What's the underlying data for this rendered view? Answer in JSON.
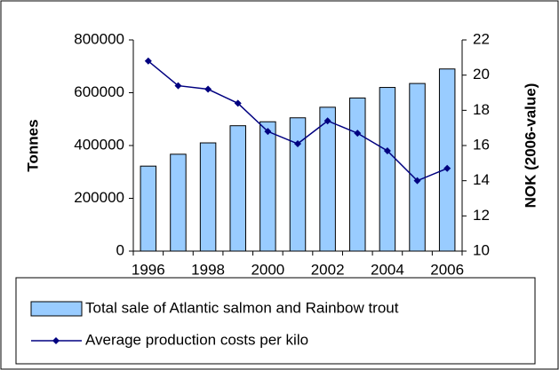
{
  "chart_data": {
    "type": "bar_line",
    "categories": [
      "1996",
      null,
      "1998",
      null,
      "2000",
      null,
      "2002",
      null,
      "2004",
      null,
      "2006"
    ],
    "series": [
      {
        "name": "Total sale of Atlantic salmon and Rainbow trout",
        "color": "#99ccff",
        "type": "bar",
        "values": [
          322000,
          367000,
          410000,
          475000,
          490000,
          505000,
          545000,
          580000,
          620000,
          635000,
          690000
        ]
      },
      {
        "name": "Average production costs per kilo",
        "color": "#000080",
        "type": "line",
        "axis": "y2",
        "values": [
          20.8,
          19.4,
          19.2,
          18.4,
          16.8,
          16.1,
          17.4,
          16.7,
          15.7,
          14.0,
          14.7
        ]
      }
    ],
    "ylabel": "Tonnes",
    "y2label": "NOK (2006-value)",
    "ylim": [
      0,
      800000
    ],
    "yticks": [
      0,
      200000,
      400000,
      600000,
      800000
    ],
    "y2lim": [
      10,
      22
    ],
    "y2ticks": [
      10,
      12,
      14,
      16,
      18,
      20,
      22
    ],
    "legend": "bottom"
  }
}
